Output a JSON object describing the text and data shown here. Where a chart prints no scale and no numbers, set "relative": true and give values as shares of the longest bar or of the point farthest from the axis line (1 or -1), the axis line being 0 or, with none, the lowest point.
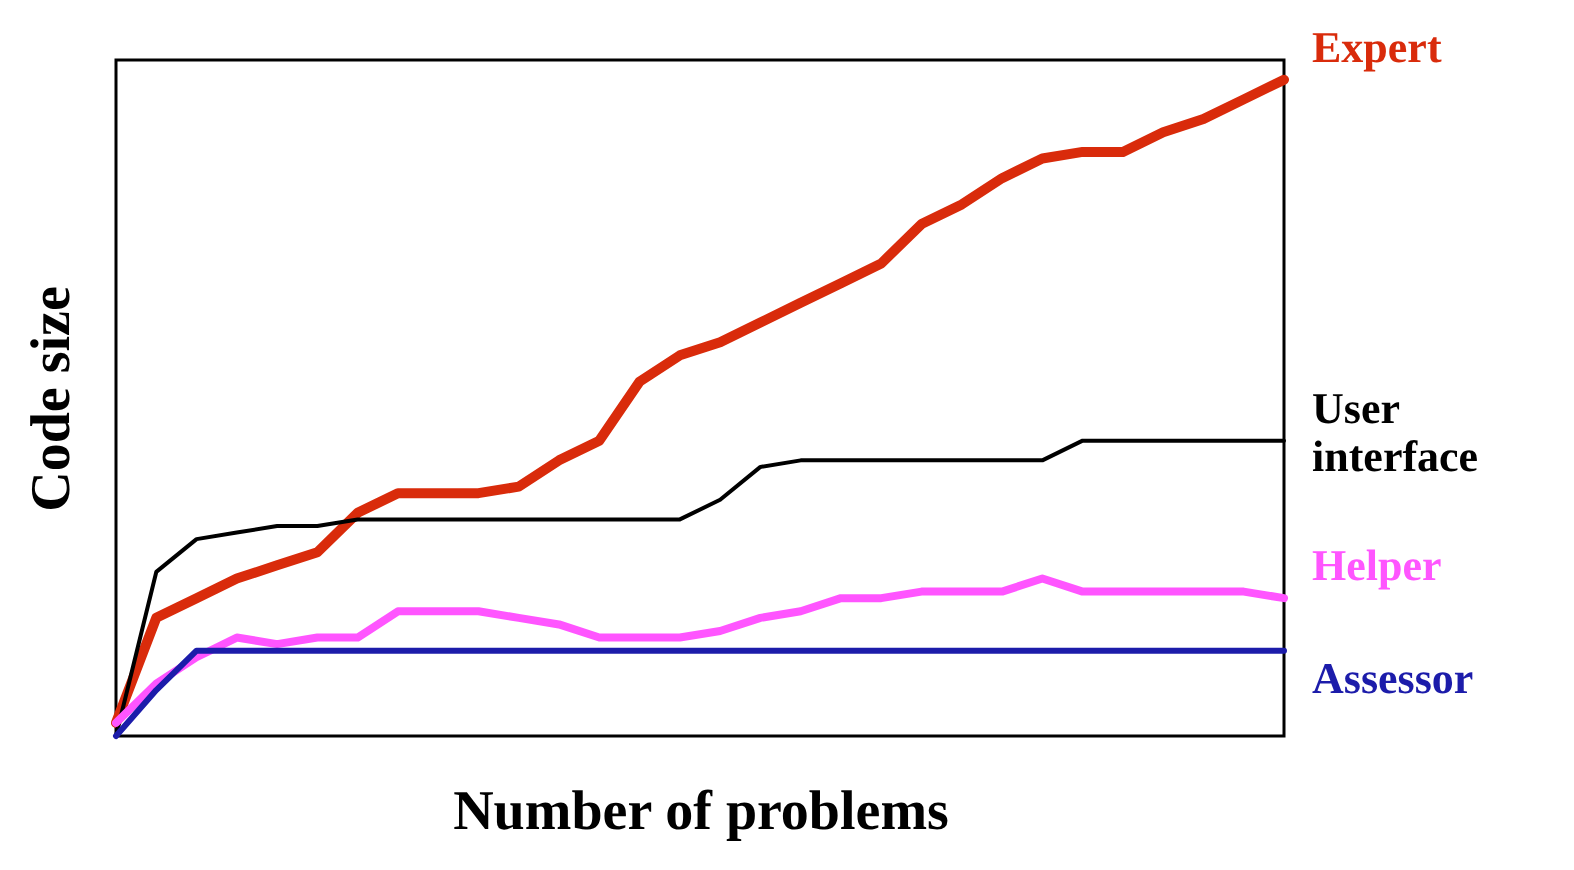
{
  "chart_data": {
    "type": "line",
    "relative": true,
    "xlabel": "Number of problems",
    "ylabel": "Code size",
    "legend": false,
    "grid": false,
    "categories": [
      null,
      null,
      null,
      null,
      null,
      null,
      null,
      null,
      null,
      null,
      null,
      null,
      null,
      null,
      null,
      null,
      null,
      null,
      null,
      null,
      null,
      null,
      null,
      null,
      null,
      null,
      null,
      null,
      null,
      null
    ],
    "series": [
      {
        "name": "Expert",
        "color": "#d92b0b",
        "values": [
          0.02,
          0.18,
          0.21,
          0.24,
          0.26,
          0.28,
          0.34,
          0.37,
          0.37,
          0.37,
          0.38,
          0.42,
          0.45,
          0.54,
          0.58,
          0.6,
          0.63,
          0.66,
          0.69,
          0.72,
          0.78,
          0.81,
          0.85,
          0.88,
          0.89,
          0.89,
          0.92,
          0.94,
          0.97,
          1
        ]
      },
      {
        "name": "User interface",
        "color": "#000000",
        "values": [
          0,
          0.25,
          0.3,
          0.31,
          0.32,
          0.32,
          0.33,
          0.33,
          0.33,
          0.33,
          0.33,
          0.33,
          0.33,
          0.33,
          0.33,
          0.36,
          0.41,
          0.42,
          0.42,
          0.42,
          0.42,
          0.42,
          0.42,
          0.42,
          0.45,
          0.45,
          0.45,
          0.45,
          0.45,
          0.45
        ]
      },
      {
        "name": "Helper",
        "color": "#ff55ff",
        "values": [
          0.02,
          0.08,
          0.12,
          0.15,
          0.14,
          0.15,
          0.15,
          0.19,
          0.19,
          0.19,
          0.18,
          0.17,
          0.15,
          0.15,
          0.15,
          0.16,
          0.18,
          0.19,
          0.21,
          0.21,
          0.22,
          0.22,
          0.22,
          0.24,
          0.22,
          0.22,
          0.22,
          0.22,
          0.22,
          0.21
        ]
      },
      {
        "name": "Assessor",
        "color": "#1c1caa",
        "values": [
          0,
          0.07,
          0.13,
          0.13,
          0.13,
          0.13,
          0.13,
          0.13,
          0.13,
          0.13,
          0.13,
          0.13,
          0.13,
          0.13,
          0.13,
          0.13,
          0.13,
          0.13,
          0.13,
          0.13,
          0.13,
          0.13,
          0.13,
          0.13,
          0.13,
          0.13,
          0.13,
          0.13,
          0.13,
          0.13
        ]
      }
    ]
  }
}
